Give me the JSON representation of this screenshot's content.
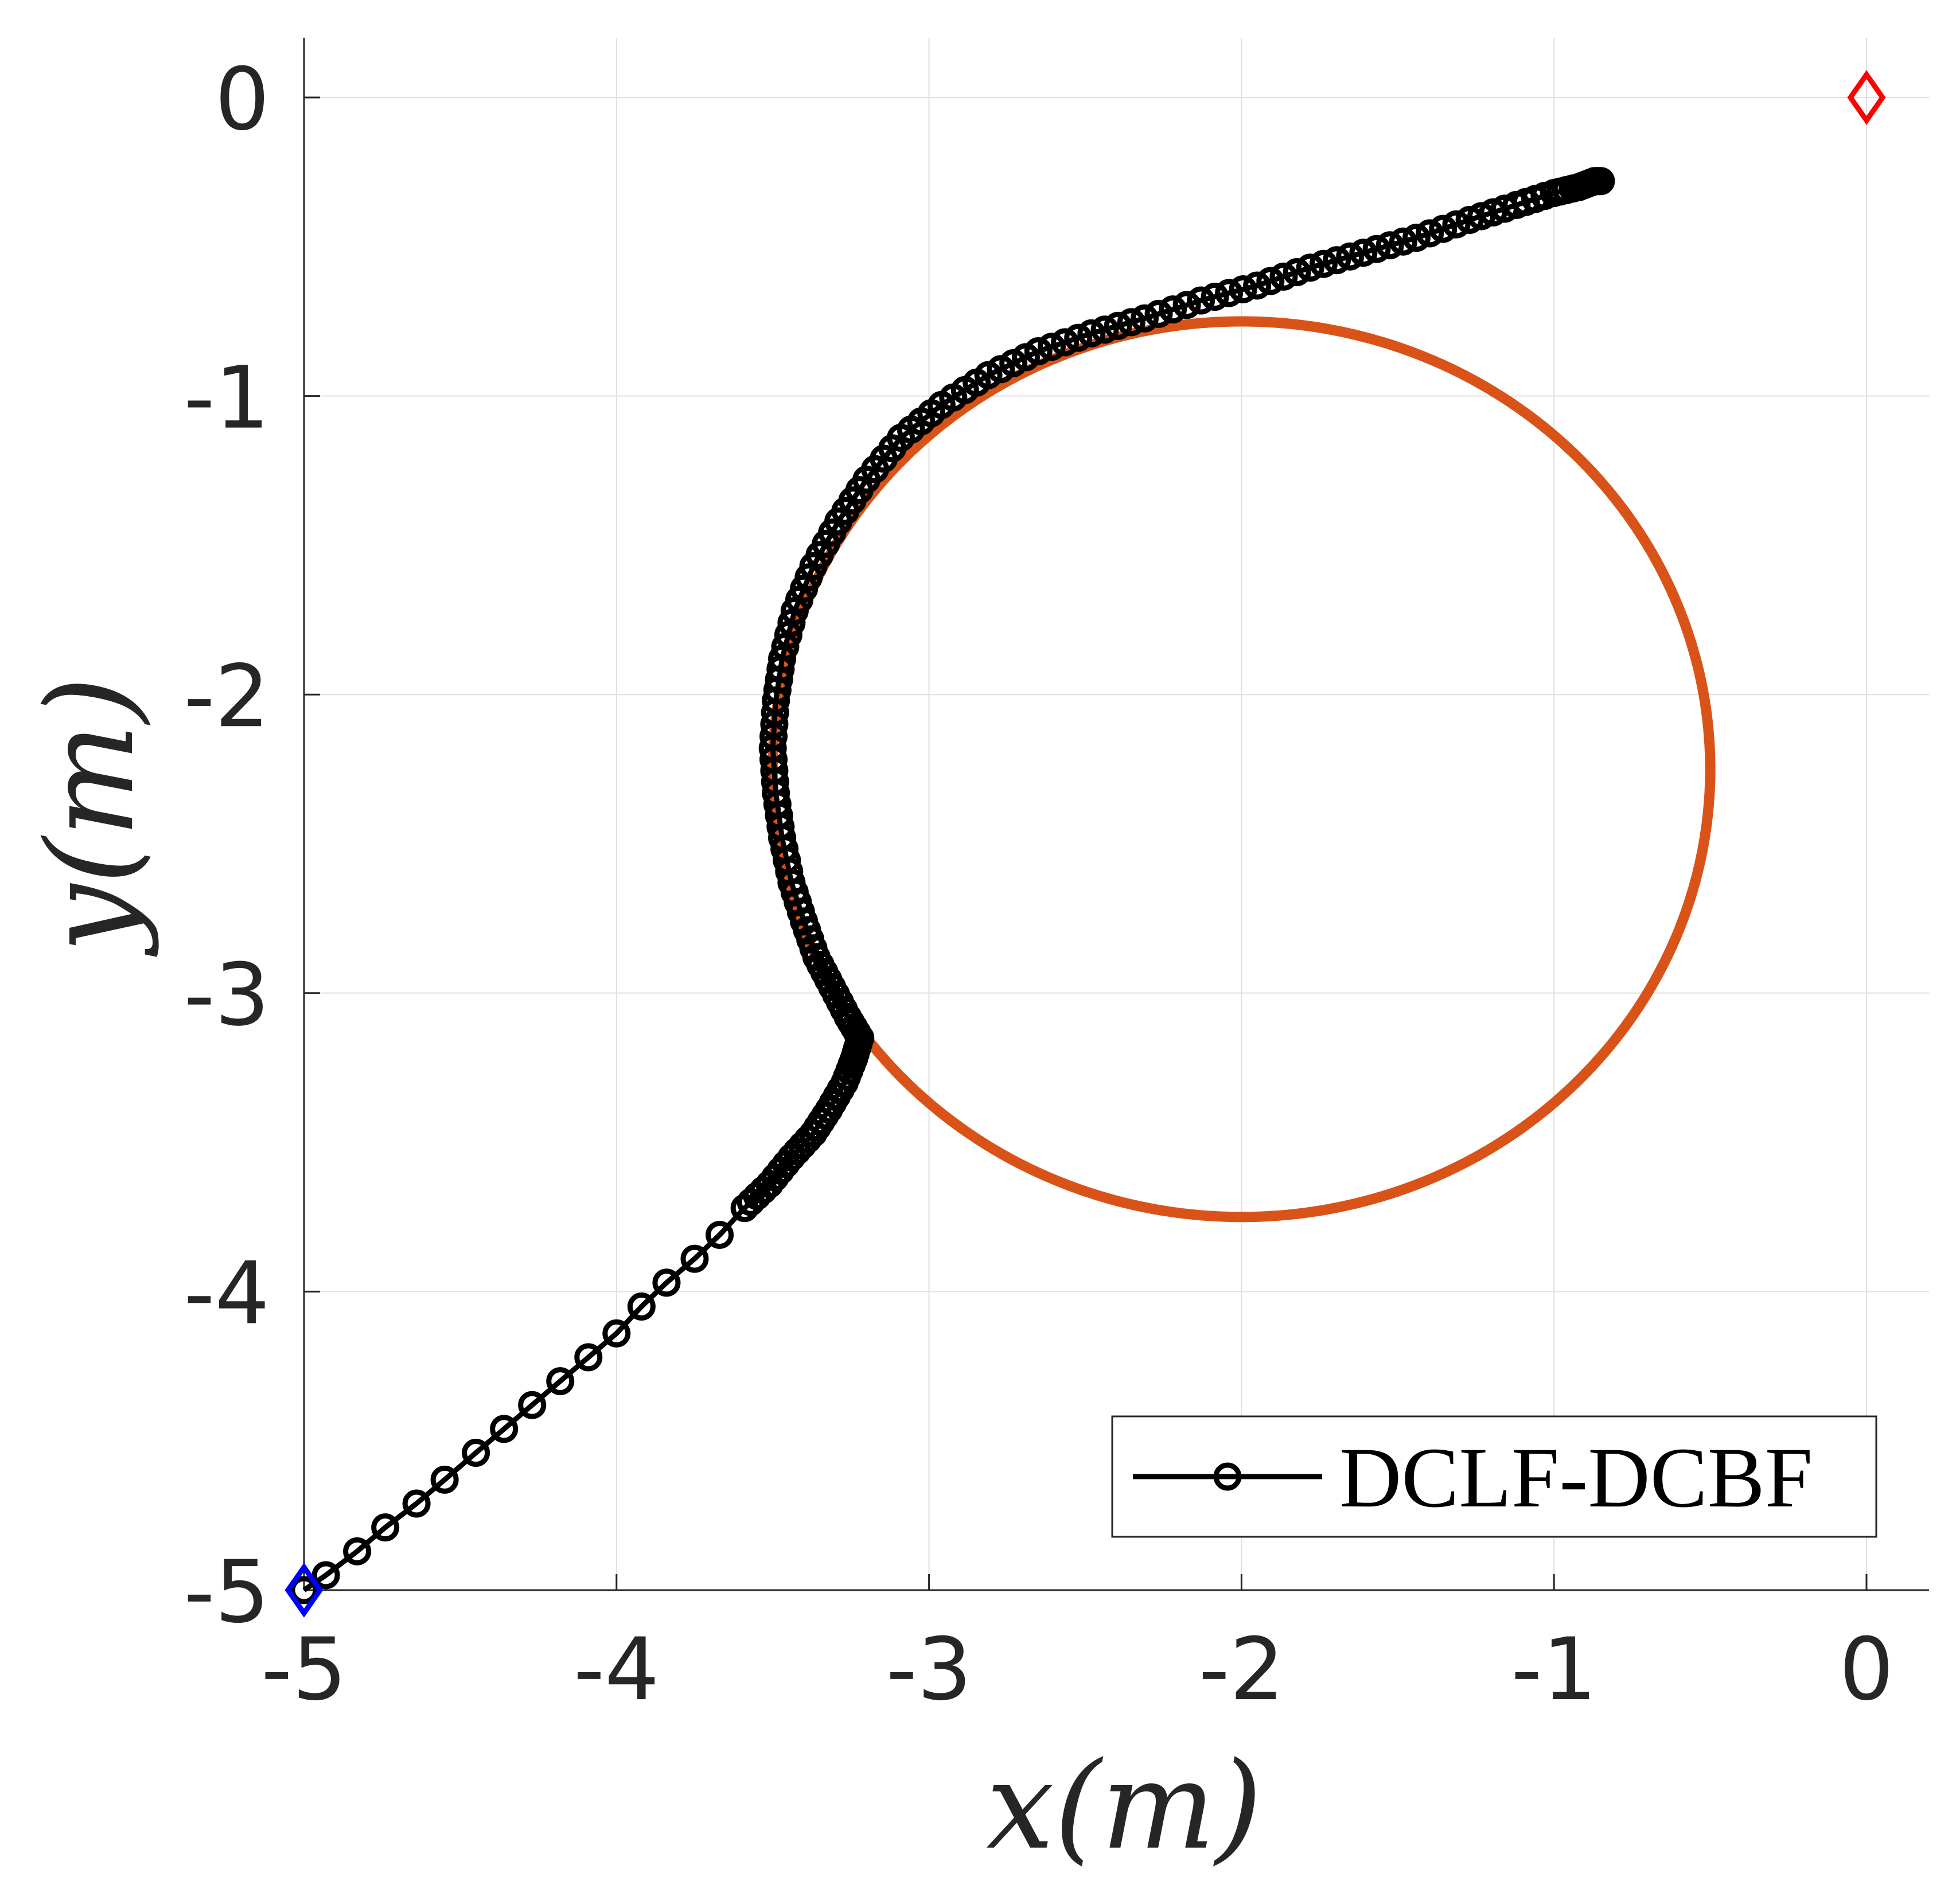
{
  "chart_data": {
    "type": "scatter",
    "xlabel": "x(m)",
    "ylabel": "y(m)",
    "xlim": [
      -5,
      0.2
    ],
    "ylim": [
      -5,
      0.2
    ],
    "grid": true,
    "legend_placement": "bottom-right",
    "x_ticks": [
      "-5",
      "-4",
      "-3",
      "-2",
      "-1",
      "0"
    ],
    "y_ticks": [
      "0",
      "-1",
      "-2",
      "-3",
      "-4",
      "-5"
    ],
    "legend": [
      "DCLF-DCBF"
    ],
    "colors": {
      "trajectory": "#000000",
      "obstacle": "#D95319",
      "start_marker": "#0000FF",
      "goal_marker": "#FF0000",
      "grid": "#E0E0E0",
      "axis": "#262626"
    },
    "obstacle": {
      "center": [
        -2,
        -2.25
      ],
      "radius": 1.5
    },
    "start": [
      -5,
      -5
    ],
    "goal": [
      0,
      0
    ],
    "series": [
      {
        "name": "DCLF-DCBF",
        "marker": "circle",
        "points": [
          [
            -5.0,
            -5.0
          ],
          [
            -4.93,
            -4.95
          ],
          [
            -4.83,
            -4.87
          ],
          [
            -4.74,
            -4.79
          ],
          [
            -4.64,
            -4.71
          ],
          [
            -4.55,
            -4.63
          ],
          [
            -4.45,
            -4.54
          ],
          [
            -4.36,
            -4.46
          ],
          [
            -4.27,
            -4.38
          ],
          [
            -4.18,
            -4.3
          ],
          [
            -4.09,
            -4.22
          ],
          [
            -4.0,
            -4.14
          ],
          [
            -3.92,
            -4.05
          ],
          [
            -3.84,
            -3.97
          ],
          [
            -3.75,
            -3.89
          ],
          [
            -3.67,
            -3.81
          ],
          [
            -3.59,
            -3.72
          ],
          [
            -3.51,
            -3.64
          ],
          [
            -3.44,
            -3.55
          ],
          [
            -3.37,
            -3.47
          ],
          [
            -3.32,
            -3.39
          ],
          [
            -3.27,
            -3.3
          ],
          [
            -3.24,
            -3.22
          ],
          [
            -3.22,
            -3.15
          ],
          [
            -3.26,
            -3.08
          ],
          [
            -3.31,
            -2.98
          ],
          [
            -3.36,
            -2.88
          ],
          [
            -3.4,
            -2.76
          ],
          [
            -3.44,
            -2.63
          ],
          [
            -3.47,
            -2.48
          ],
          [
            -3.49,
            -2.33
          ],
          [
            -3.5,
            -2.18
          ],
          [
            -3.49,
            -2.02
          ],
          [
            -3.47,
            -1.88
          ],
          [
            -3.43,
            -1.72
          ],
          [
            -3.37,
            -1.57
          ],
          [
            -3.29,
            -1.42
          ],
          [
            -3.2,
            -1.28
          ],
          [
            -3.09,
            -1.14
          ],
          [
            -2.96,
            -1.03
          ],
          [
            -2.81,
            -0.93
          ],
          [
            -2.65,
            -0.85
          ],
          [
            -2.48,
            -0.79
          ],
          [
            -2.31,
            -0.74
          ],
          [
            -2.13,
            -0.68
          ],
          [
            -1.95,
            -0.63
          ],
          [
            -1.78,
            -0.57
          ],
          [
            -1.61,
            -0.52
          ],
          [
            -1.44,
            -0.47
          ],
          [
            -1.27,
            -0.41
          ],
          [
            -1.12,
            -0.36
          ],
          [
            -1.0,
            -0.32
          ],
          [
            -0.92,
            -0.3
          ],
          [
            -0.87,
            -0.28
          ],
          [
            -0.85,
            -0.28
          ]
        ]
      }
    ]
  }
}
